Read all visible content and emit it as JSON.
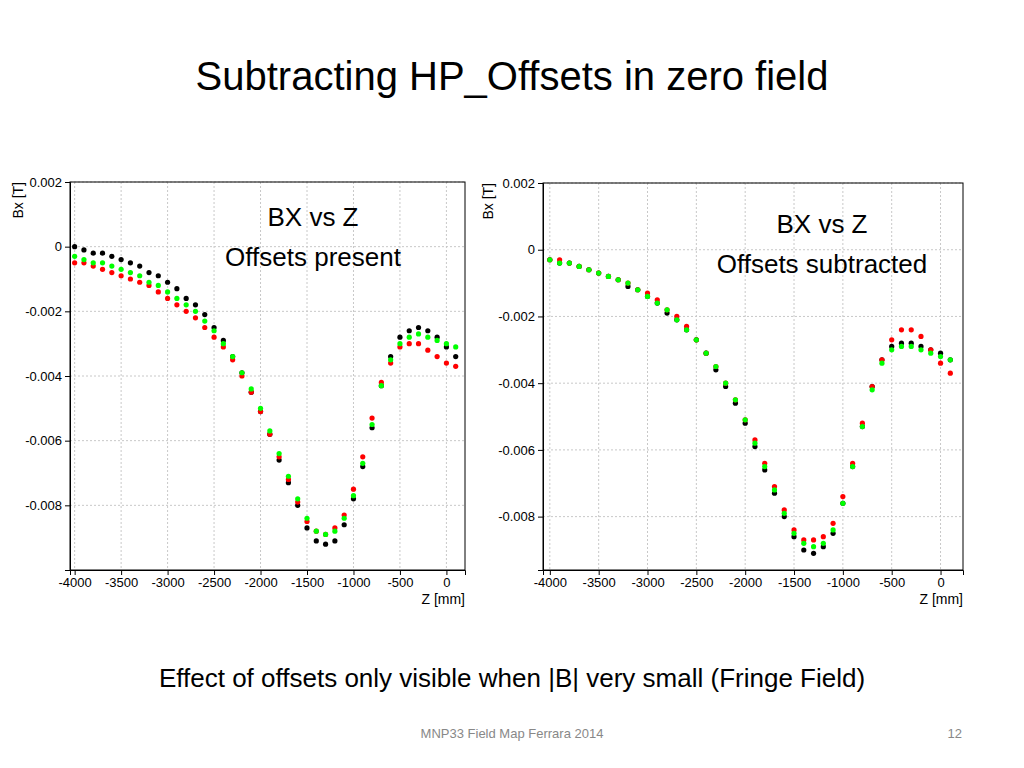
{
  "slide": {
    "title": "Subtracting HP_Offsets in zero field",
    "caption": "Effect of offsets only visible when |B| very small (Fringe Field)",
    "footer": "MNP33 Field Map  Ferrara 2014",
    "page": 12
  },
  "chart_data": [
    {
      "type": "scatter",
      "annotations": [
        "BX vs Z",
        "Offsets present"
      ],
      "x_label": "Z [mm]",
      "y_label": "Bx [T]",
      "x": [
        -4000,
        -3900,
        -3800,
        -3700,
        -3600,
        -3500,
        -3400,
        -3300,
        -3200,
        -3100,
        -3000,
        -2900,
        -2800,
        -2700,
        -2600,
        -2500,
        -2400,
        -2300,
        -2200,
        -2100,
        -2000,
        -1900,
        -1800,
        -1700,
        -1600,
        -1500,
        -1400,
        -1300,
        -1200,
        -1100,
        -1000,
        -900,
        -800,
        -700,
        -600,
        -500,
        -400,
        -300,
        -200,
        -100,
        0,
        100
      ],
      "series": [
        {
          "color": "#000000",
          "marker": "circle",
          "values": [
            0,
            -0.0001,
            -0.0002,
            -0.0002,
            -0.0003,
            -0.0004,
            -0.0005,
            -0.0006,
            -0.0008,
            -0.0009,
            -0.0011,
            -0.0013,
            -0.0016,
            -0.0018,
            -0.0021,
            -0.0025,
            -0.0029,
            -0.0034,
            -0.0039,
            -0.0045,
            -0.0051,
            -0.0058,
            -0.0066,
            -0.0073,
            -0.008,
            -0.0087,
            -0.0091,
            -0.0092,
            -0.0091,
            -0.0086,
            -0.0078,
            -0.0068,
            -0.0056,
            -0.0043,
            -0.0034,
            -0.0028,
            -0.0026,
            -0.0025,
            -0.0026,
            -0.0028,
            -0.0031,
            -0.0034
          ]
        },
        {
          "color": "#ff0000",
          "marker": "circle",
          "values": [
            -0.0005,
            -0.0005,
            -0.0006,
            -0.0007,
            -0.0008,
            -0.0009,
            -0.001,
            -0.0011,
            -0.0012,
            -0.0014,
            -0.0016,
            -0.0018,
            -0.002,
            -0.0022,
            -0.0025,
            -0.0028,
            -0.0031,
            -0.0035,
            -0.004,
            -0.0045,
            -0.0051,
            -0.0058,
            -0.0065,
            -0.0072,
            -0.0079,
            -0.0085,
            -0.0088,
            -0.0089,
            -0.0087,
            -0.0083,
            -0.0075,
            -0.0065,
            -0.0053,
            -0.0042,
            -0.0036,
            -0.0031,
            -0.003,
            -0.003,
            -0.0032,
            -0.0034,
            -0.0036,
            -0.0037
          ]
        },
        {
          "color": "#00ff00",
          "marker": "circle",
          "values": [
            -0.0003,
            -0.0004,
            -0.0005,
            -0.0005,
            -0.0006,
            -0.0007,
            -0.0008,
            -0.0009,
            -0.0011,
            -0.0012,
            -0.0014,
            -0.0016,
            -0.0018,
            -0.002,
            -0.0023,
            -0.0026,
            -0.003,
            -0.0034,
            -0.0039,
            -0.0044,
            -0.005,
            -0.0057,
            -0.0064,
            -0.0071,
            -0.0078,
            -0.0084,
            -0.0088,
            -0.0089,
            -0.0088,
            -0.0084,
            -0.0077,
            -0.0067,
            -0.0055,
            -0.0043,
            -0.0035,
            -0.003,
            -0.0028,
            -0.0027,
            -0.0028,
            -0.0029,
            -0.003,
            -0.0031
          ]
        }
      ],
      "xlim": [
        -4050,
        200
      ],
      "ylim": [
        -0.01,
        0.002
      ],
      "xticks": [
        -4000,
        -3500,
        -3000,
        -2500,
        -2000,
        -1500,
        -1000,
        -500,
        0
      ],
      "yticks": [
        0.002,
        0,
        -0.002,
        -0.004,
        -0.006,
        -0.008
      ],
      "grid": true
    },
    {
      "type": "scatter",
      "annotations": [
        "BX vs Z",
        "Offsets subtracted"
      ],
      "x_label": "Z [mm]",
      "y_label": "Bx [T]",
      "x": [
        -4000,
        -3900,
        -3800,
        -3700,
        -3600,
        -3500,
        -3400,
        -3300,
        -3200,
        -3100,
        -3000,
        -2900,
        -2800,
        -2700,
        -2600,
        -2500,
        -2400,
        -2300,
        -2200,
        -2100,
        -2000,
        -1900,
        -1800,
        -1700,
        -1600,
        -1500,
        -1400,
        -1300,
        -1200,
        -1100,
        -1000,
        -900,
        -800,
        -700,
        -600,
        -500,
        -400,
        -300,
        -200,
        -100,
        0,
        100
      ],
      "series": [
        {
          "color": "#000000",
          "marker": "circle",
          "values": [
            -0.0003,
            -0.0004,
            -0.0004,
            -0.0005,
            -0.0006,
            -0.0007,
            -0.0008,
            -0.0009,
            -0.0011,
            -0.0012,
            -0.0014,
            -0.0016,
            -0.0019,
            -0.0021,
            -0.0024,
            -0.0027,
            -0.0031,
            -0.0036,
            -0.0041,
            -0.0046,
            -0.0052,
            -0.0059,
            -0.0066,
            -0.0073,
            -0.008,
            -0.0086,
            -0.009,
            -0.0091,
            -0.0089,
            -0.0085,
            -0.0076,
            -0.0065,
            -0.0053,
            -0.0041,
            -0.0033,
            -0.0029,
            -0.0028,
            -0.0028,
            -0.0029,
            -0.003,
            -0.0031,
            -0.0033
          ]
        },
        {
          "color": "#ff0000",
          "marker": "circle",
          "values": [
            -0.0003,
            -0.0003,
            -0.0004,
            -0.0005,
            -0.0006,
            -0.0007,
            -0.0008,
            -0.0009,
            -0.001,
            -0.0012,
            -0.0013,
            -0.0015,
            -0.0018,
            -0.002,
            -0.0023,
            -0.0027,
            -0.0031,
            -0.0035,
            -0.004,
            -0.0045,
            -0.0051,
            -0.0057,
            -0.0064,
            -0.0071,
            -0.0078,
            -0.0084,
            -0.0087,
            -0.0087,
            -0.0086,
            -0.0082,
            -0.0074,
            -0.0064,
            -0.0052,
            -0.0041,
            -0.0033,
            -0.0027,
            -0.0024,
            -0.0024,
            -0.0026,
            -0.003,
            -0.0034,
            -0.0037
          ]
        },
        {
          "color": "#00ff00",
          "marker": "circle",
          "values": [
            -0.0003,
            -0.0004,
            -0.0004,
            -0.0005,
            -0.0006,
            -0.0007,
            -0.0008,
            -0.0009,
            -0.001,
            -0.0012,
            -0.0014,
            -0.0016,
            -0.0018,
            -0.0021,
            -0.0024,
            -0.0027,
            -0.0031,
            -0.0035,
            -0.004,
            -0.0045,
            -0.0051,
            -0.0058,
            -0.0065,
            -0.0072,
            -0.0079,
            -0.0085,
            -0.0088,
            -0.0089,
            -0.0088,
            -0.0084,
            -0.0076,
            -0.0065,
            -0.0053,
            -0.0042,
            -0.0034,
            -0.003,
            -0.0029,
            -0.0029,
            -0.003,
            -0.0031,
            -0.0032,
            -0.0033
          ]
        }
      ],
      "xlim": [
        -4070,
        230
      ],
      "ylim": [
        -0.0096,
        0.002
      ],
      "xticks": [
        -4000,
        -3500,
        -3000,
        -2500,
        -2000,
        -1500,
        -1000,
        -500,
        0
      ],
      "yticks": [
        0.002,
        0,
        -0.002,
        -0.004,
        -0.006,
        -0.008
      ],
      "grid": true
    }
  ]
}
